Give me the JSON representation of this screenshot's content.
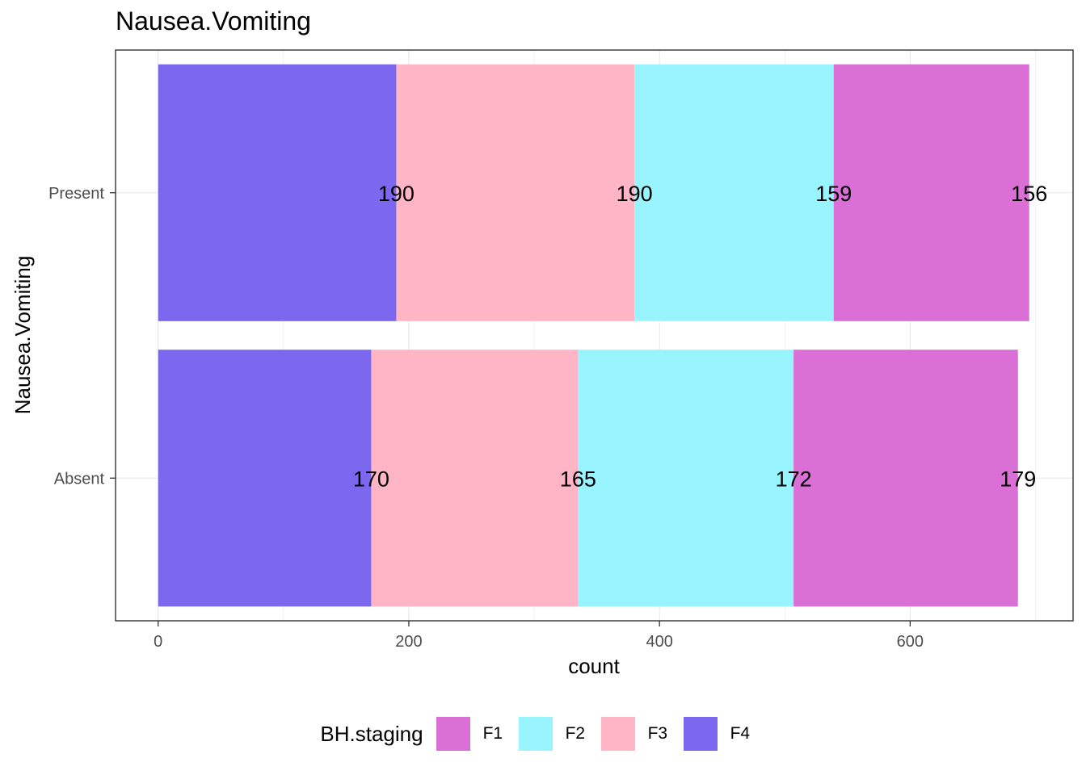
{
  "chart_data": {
    "type": "bar",
    "orientation": "horizontal",
    "stacked": true,
    "title": "Nausea.Vomiting",
    "xlabel": "count",
    "ylabel": "Nausea.Vomiting",
    "categories": [
      "Absent",
      "Present"
    ],
    "xlim": [
      -34,
      730
    ],
    "x_ticks": [
      "0",
      "200",
      "400",
      "600"
    ],
    "x_tick_values": [
      0,
      200,
      400,
      600
    ],
    "grid": true,
    "legend": {
      "title": "BH.staging",
      "placement": "bottom",
      "entries": [
        "F1",
        "F2",
        "F3",
        "F4"
      ]
    },
    "stack_order": [
      "F4",
      "F3",
      "F2",
      "F1"
    ],
    "series": [
      {
        "name": "F1",
        "color": "#DA70D6",
        "values": [
          179,
          156
        ]
      },
      {
        "name": "F2",
        "color": "#98F5FF",
        "values": [
          172,
          159
        ]
      },
      {
        "name": "F3",
        "color": "#FFB5C5",
        "values": [
          165,
          190
        ]
      },
      {
        "name": "F4",
        "color": "#7B68EE",
        "values": [
          170,
          190
        ]
      }
    ]
  }
}
